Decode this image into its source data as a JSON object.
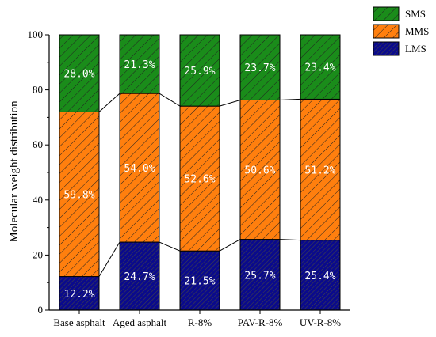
{
  "chart_data": {
    "type": "bar",
    "stacked": true,
    "categories": [
      "Base asphalt",
      "Aged asphalt",
      "R-8%",
      "PAV-R-8%",
      "UV-R-8%"
    ],
    "series": [
      {
        "name": "LMS",
        "values": [
          12.2,
          24.7,
          21.5,
          25.7,
          25.4
        ],
        "labels": [
          "12.2%",
          "24.7%",
          "21.5%",
          "25.7%",
          "25.4%"
        ],
        "color": "#0a0a8c"
      },
      {
        "name": "MMS",
        "values": [
          59.8,
          54.0,
          52.6,
          50.6,
          51.2
        ],
        "labels": [
          "59.8%",
          "54.0%",
          "52.6%",
          "50.6%",
          "51.2%"
        ],
        "color": "#ff7f0e"
      },
      {
        "name": "SMS",
        "values": [
          28.0,
          21.3,
          25.9,
          23.7,
          23.4
        ],
        "labels": [
          "28.0%",
          "21.3%",
          "25.9%",
          "23.7%",
          "23.4%"
        ],
        "color": "#1a8c1a"
      }
    ],
    "xlabel": "",
    "ylabel": "Molecular weight distribution",
    "ylim": [
      0,
      100
    ],
    "yticks": [
      0,
      20,
      40,
      60,
      80,
      100
    ],
    "legend_order": [
      "SMS",
      "MMS",
      "LMS"
    ],
    "legend_position": "top-right",
    "connector_lines": true
  }
}
